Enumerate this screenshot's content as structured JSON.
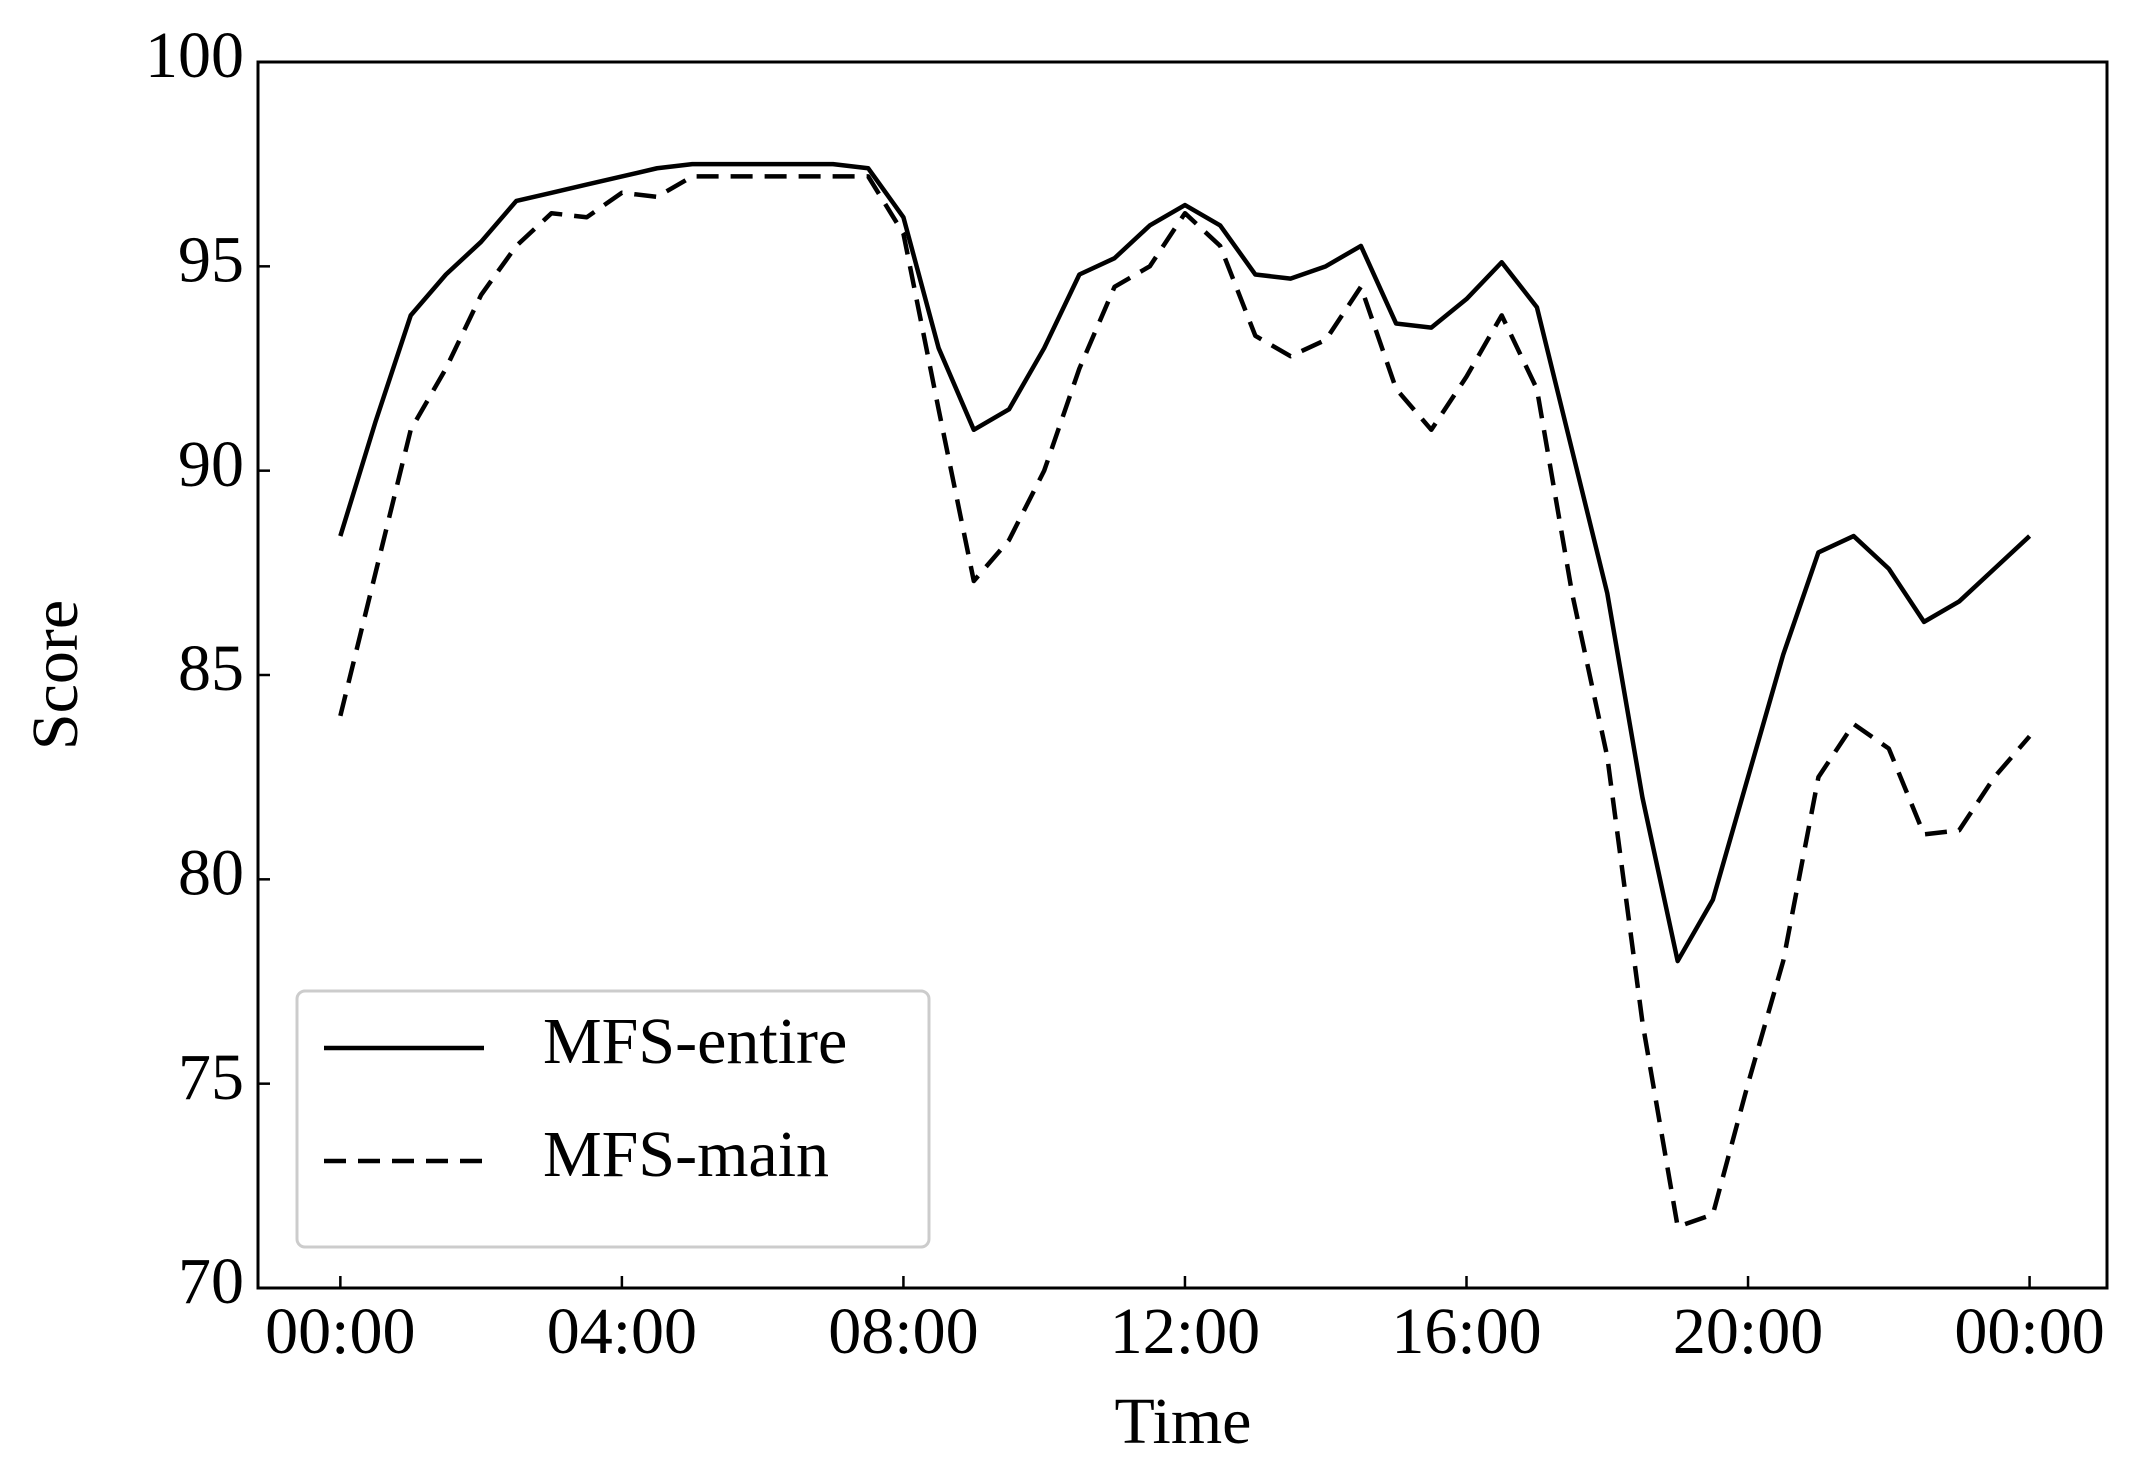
{
  "chart_data": {
    "type": "line",
    "x_label": "Time",
    "y_label": "Score",
    "x": [
      0,
      0.5,
      1,
      1.5,
      2,
      2.5,
      3,
      3.5,
      4,
      4.5,
      5,
      5.5,
      6,
      6.5,
      7,
      7.5,
      8,
      8.5,
      9,
      9.5,
      10,
      10.5,
      11,
      11.5,
      12,
      12.5,
      13,
      13.5,
      14,
      14.5,
      15,
      15.5,
      16,
      16.5,
      17,
      17.5,
      18,
      18.5,
      19,
      19.5,
      20,
      20.5,
      21,
      21.5,
      22,
      22.5,
      23,
      23.5,
      24
    ],
    "series": [
      {
        "name": "MFS-entire",
        "color": "#000000",
        "style": "solid",
        "values": [
          88.4,
          91.2,
          93.8,
          94.8,
          95.6,
          96.6,
          96.8,
          97.0,
          97.2,
          97.4,
          97.5,
          97.5,
          97.5,
          97.5,
          97.5,
          97.4,
          96.2,
          93.0,
          91.0,
          91.5,
          93.0,
          94.8,
          95.2,
          96.0,
          96.5,
          96.0,
          94.8,
          94.7,
          95.0,
          95.5,
          93.6,
          93.5,
          94.2,
          95.1,
          94.0,
          90.5,
          87.0,
          82.0,
          78.0,
          79.5,
          82.5,
          85.5,
          88.0,
          88.4,
          87.6,
          86.3,
          86.8,
          87.6,
          88.4
        ]
      },
      {
        "name": "MFS-main",
        "color": "#000000",
        "style": "dashed",
        "values": [
          84.0,
          87.5,
          91.0,
          92.5,
          94.3,
          95.5,
          96.3,
          96.2,
          96.8,
          96.7,
          97.2,
          97.2,
          97.2,
          97.2,
          97.2,
          97.2,
          95.8,
          91.5,
          87.3,
          88.3,
          90.0,
          92.5,
          94.5,
          95.0,
          96.3,
          95.5,
          93.3,
          92.8,
          93.2,
          94.5,
          92.0,
          91.0,
          92.3,
          93.8,
          92.0,
          87.0,
          83.0,
          76.5,
          71.5,
          71.8,
          75.0,
          78.0,
          82.5,
          83.8,
          83.2,
          81.1,
          81.2,
          82.5,
          83.5
        ]
      }
    ],
    "xlim": [
      -1.17,
      25.1
    ],
    "xticks": [
      {
        "value": 0,
        "label": "00:00"
      },
      {
        "value": 4,
        "label": "04:00"
      },
      {
        "value": 8,
        "label": "08:00"
      },
      {
        "value": 12,
        "label": "12:00"
      },
      {
        "value": 16,
        "label": "16:00"
      },
      {
        "value": 20,
        "label": "20:00"
      },
      {
        "value": 24,
        "label": "00:00"
      }
    ],
    "ylim": [
      70,
      100
    ],
    "yticks": [
      70,
      75,
      80,
      85,
      90,
      95,
      100
    ],
    "grid": false,
    "legend": "lower left"
  }
}
